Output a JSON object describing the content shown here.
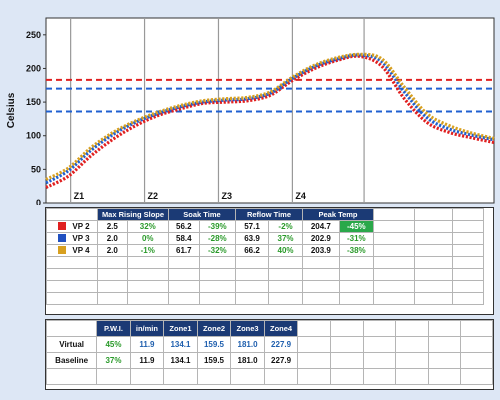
{
  "chart_data": {
    "type": "line",
    "ylabel": "Celsius",
    "ylim": [
      0,
      275
    ],
    "xlim": [
      0,
      100
    ],
    "yticks": [
      0,
      50,
      100,
      150,
      200,
      250
    ],
    "zones": [
      {
        "label": "Z1",
        "x": 5.5
      },
      {
        "label": "Z2",
        "x": 22
      },
      {
        "label": "Z3",
        "x": 38.5
      },
      {
        "label": "Z4",
        "x": 55
      }
    ],
    "extra_divider_x": 71,
    "limit_lines": [
      {
        "y": 183,
        "color": "#e02020"
      },
      {
        "y": 170,
        "color": "#2060d0"
      },
      {
        "y": 136,
        "color": "#2060d0"
      }
    ],
    "series": [
      {
        "color": "#e02020",
        "x": [
          0,
          5,
          10,
          15,
          20,
          25,
          30,
          35,
          40,
          45,
          50,
          55,
          60,
          65,
          70,
          75,
          80,
          85,
          90,
          95,
          100
        ],
        "y": [
          23,
          40,
          70,
          95,
          115,
          130,
          140,
          148,
          150,
          152,
          160,
          182,
          200,
          212,
          218,
          203,
          155,
          120,
          105,
          97,
          90
        ]
      },
      {
        "color": "#2060d0",
        "x": [
          0,
          5,
          10,
          15,
          20,
          25,
          30,
          35,
          40,
          45,
          50,
          55,
          60,
          65,
          70,
          75,
          80,
          85,
          90,
          95,
          100
        ],
        "y": [
          30,
          48,
          78,
          102,
          120,
          133,
          143,
          150,
          153,
          155,
          163,
          185,
          203,
          214,
          220,
          210,
          165,
          127,
          110,
          101,
          94
        ]
      },
      {
        "color": "#d8a020",
        "x": [
          0,
          5,
          10,
          15,
          20,
          25,
          30,
          35,
          40,
          45,
          50,
          55,
          60,
          65,
          70,
          75,
          80,
          85,
          90,
          95,
          100
        ],
        "y": [
          35,
          52,
          82,
          105,
          122,
          135,
          145,
          152,
          155,
          157,
          165,
          187,
          205,
          216,
          221,
          214,
          172,
          133,
          115,
          104,
          96
        ]
      }
    ]
  },
  "results": {
    "headers": [
      "Max Rising Slope",
      "Soak Time",
      "Reflow Time",
      "Peak Temp"
    ],
    "rows": [
      {
        "label": "VP  2",
        "color": "#e02020",
        "values": [
          "2.5",
          "32%",
          "56.2",
          "-39%",
          "57.1",
          "-2%",
          "204.7",
          "-45%"
        ]
      },
      {
        "label": "VP  3",
        "color": "#2050c0",
        "values": [
          "2.0",
          "0%",
          "58.4",
          "-28%",
          "63.9",
          "37%",
          "202.9",
          "-31%"
        ]
      },
      {
        "label": "VP  4",
        "color": "#d8a020",
        "values": [
          "2.0",
          "-1%",
          "61.7",
          "-32%",
          "66.2",
          "40%",
          "203.9",
          "-38%"
        ]
      }
    ]
  },
  "pwi": {
    "headers": [
      "P.W.I.",
      "in/min",
      "Zone1",
      "Zone2",
      "Zone3",
      "Zone4"
    ],
    "rows": [
      {
        "label": "Virtual",
        "values": [
          "45%",
          "11.9",
          "134.1",
          "159.5",
          "181.0",
          "227.9"
        ]
      },
      {
        "label": "Baseline",
        "values": [
          "37%",
          "11.9",
          "134.1",
          "159.5",
          "181.0",
          "227.9"
        ]
      }
    ]
  }
}
